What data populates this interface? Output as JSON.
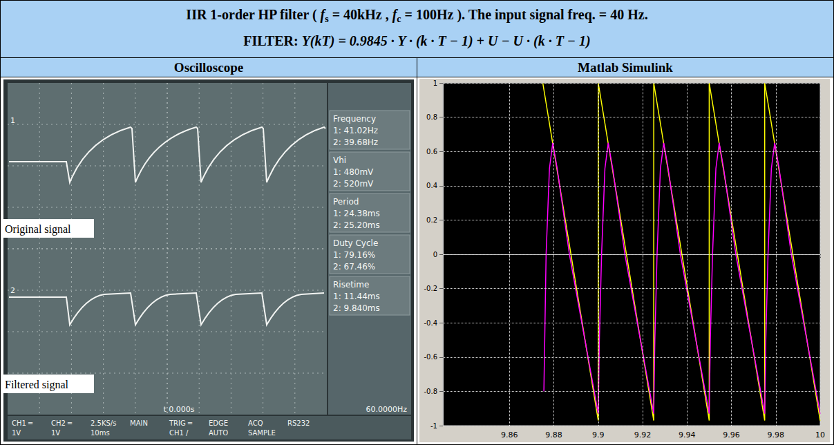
{
  "header": {
    "title": [
      "IIR 1-order HP filter ( ",
      {
        "var": "f",
        "sub": "s"
      },
      " = 40kHz , ",
      {
        "var": "f",
        "sub": "c"
      },
      " = 100Hz ). The input signal freq. = 40 Hz."
    ],
    "filter_label": "FILTER:",
    "filter": "Y(kT) = 0.9845 · Y · (k · T − 1) + U − U · (k · T − 1)"
  },
  "table": {
    "columns": [
      "Oscilloscope",
      "Matlab Simulink"
    ]
  },
  "oscilloscope": {
    "labels": [
      "Original signal",
      "Filtered signal"
    ],
    "measurements": [
      {
        "name": "Frequency",
        "values": [
          "1: 41.02Hz",
          "2: 39.68Hz"
        ]
      },
      {
        "name": "Vhi",
        "values": [
          "1: 480mV",
          "2: 520mV"
        ]
      },
      {
        "name": "Period",
        "values": [
          "1: 24.38ms",
          "2: 25.20ms"
        ]
      },
      {
        "name": "Duty Cycle",
        "values": [
          "1: 79.16%",
          "2: 67.46%"
        ]
      },
      {
        "name": "Risetime",
        "values": [
          "1: 11.44ms",
          "2: 9.840ms"
        ]
      }
    ],
    "time": "t 0.000s",
    "trigger_frequency": "60.0000Hz",
    "menu": [
      [
        "CH1 ═",
        "1V"
      ],
      [
        "CH2 ═",
        "1V"
      ],
      [
        "2.5KS/s",
        "10ms"
      ],
      [
        "MAIN"
      ],
      [
        "TRIG ═",
        "CH1 /"
      ],
      [
        "EDGE",
        "AUTO"
      ],
      [
        "ACQ",
        "SAMPLE"
      ],
      [
        "RS232"
      ]
    ]
  },
  "chart_data": {
    "type": "line",
    "xlim": [
      9.83,
      10
    ],
    "xticks": [
      9.86,
      9.88,
      9.9,
      9.92,
      9.94,
      9.96,
      9.98,
      10
    ],
    "ylim": [
      -1,
      1
    ],
    "yticks": [
      -1,
      -0.8,
      -0.6,
      -0.4,
      -0.2,
      0,
      0.2,
      0.4,
      0.6,
      0.8,
      1
    ],
    "grid": true,
    "series": [
      {
        "color": "#ffff00",
        "x": [
          9.875,
          9.9,
          9.9,
          9.925,
          9.925,
          9.95,
          9.95,
          9.975,
          9.975,
          10
        ],
        "values": [
          1,
          -0.97,
          1,
          -0.97,
          1,
          -0.97,
          1,
          -0.97,
          1,
          -0.97
        ]
      },
      {
        "color": "#ff00ff",
        "x": [
          9.8755,
          9.8765,
          9.878,
          9.8795,
          9.8815,
          9.887,
          9.894,
          9.9,
          9.9005,
          9.9015,
          9.903,
          9.9045,
          9.9065,
          9.912,
          9.919,
          9.925,
          9.9255,
          9.9265,
          9.928,
          9.9295,
          9.9315,
          9.937,
          9.944,
          9.95,
          9.9505,
          9.9515,
          9.953,
          9.9545,
          9.9565,
          9.962,
          9.969,
          9.975,
          9.9755,
          9.9765,
          9.978,
          9.9795,
          9.9815,
          9.987,
          9.994,
          10
        ],
        "values": [
          -0.8,
          0,
          0.5,
          0.65,
          0.5,
          0,
          -0.5,
          -0.93,
          -0.5,
          0,
          0.5,
          0.65,
          0.5,
          0,
          -0.5,
          -0.93,
          -0.5,
          0,
          0.5,
          0.65,
          0.5,
          0,
          -0.5,
          -0.93,
          -0.5,
          0,
          0.5,
          0.65,
          0.5,
          0,
          -0.5,
          -0.93,
          -0.5,
          0,
          0.5,
          0.65,
          0.5,
          0,
          -0.5,
          -0.93
        ]
      }
    ]
  }
}
